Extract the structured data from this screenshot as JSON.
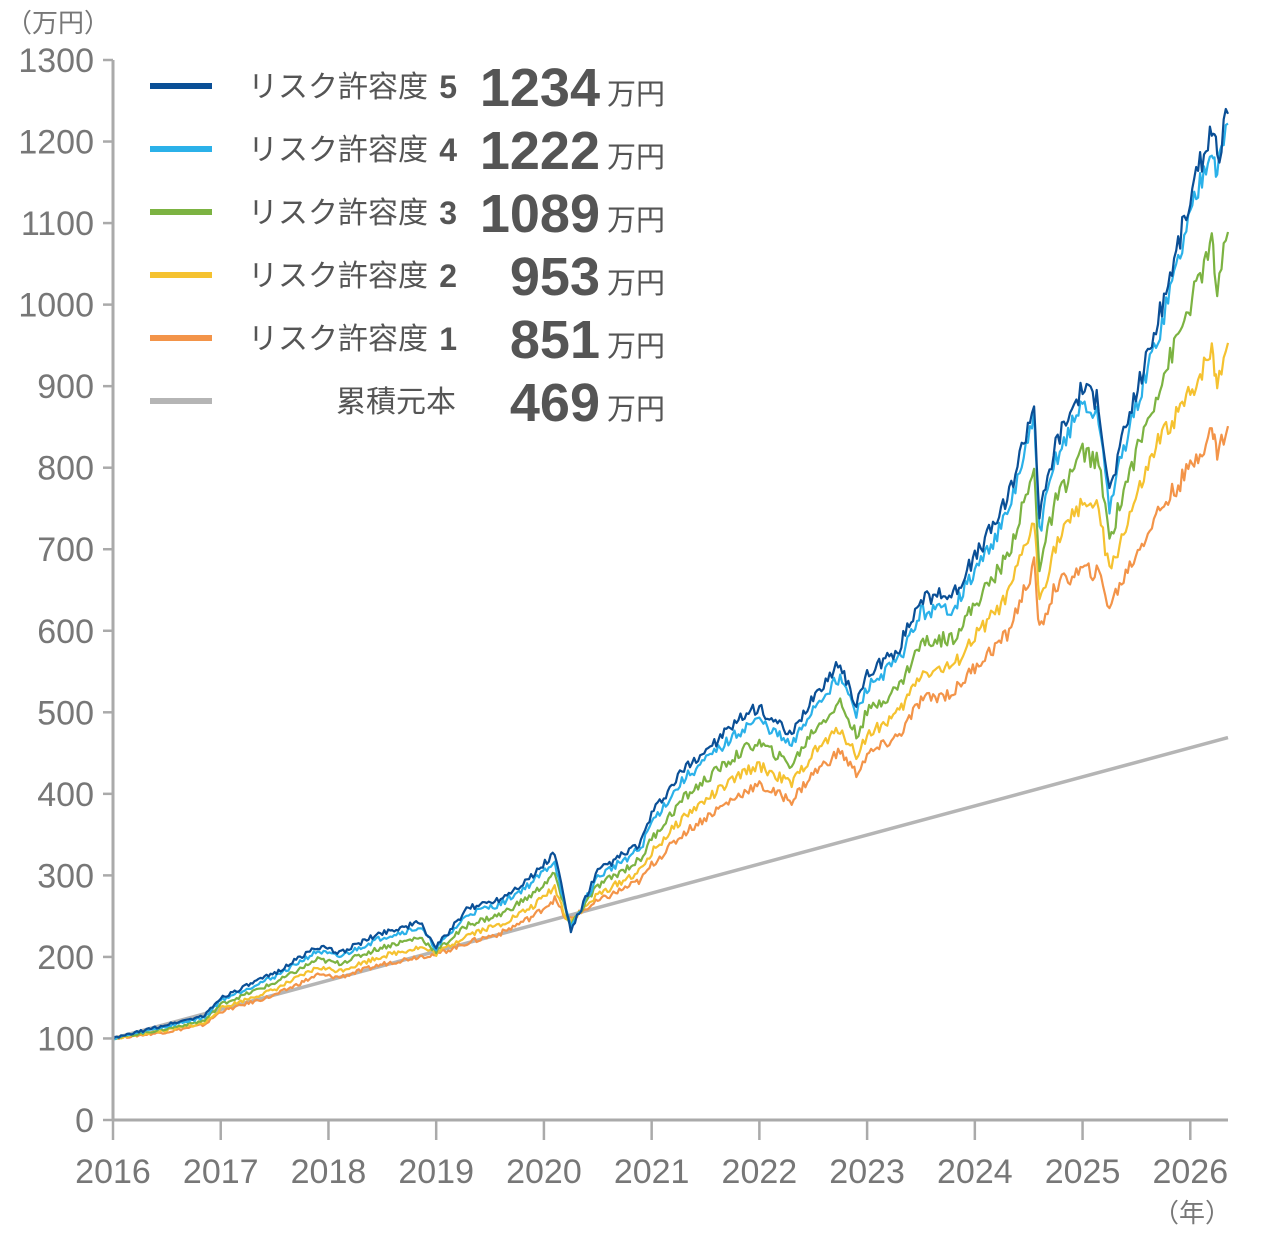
{
  "chart_data": {
    "type": "line",
    "y_unit": "（万円）",
    "x_unit": "（年）",
    "xlim": [
      2016,
      2026.35
    ],
    "ylim": [
      0,
      1300
    ],
    "y_ticks": [
      0,
      100,
      200,
      300,
      400,
      500,
      600,
      700,
      800,
      900,
      1000,
      1100,
      1200,
      1300
    ],
    "x_ticks": [
      2016,
      2017,
      2018,
      2019,
      2020,
      2021,
      2022,
      2023,
      2024,
      2025,
      2026
    ],
    "grid": false,
    "legend_position": "top-left",
    "colors": {
      "axis": "#aaaaaa",
      "tick_text": "#777777",
      "legend_text": "#555555"
    },
    "series": [
      {
        "name": "リスク許容度",
        "level": "5",
        "final_value": "1234",
        "unit": "万円",
        "color": "#0a4f96",
        "points": [
          [
            2016.0,
            100
          ],
          [
            2016.5,
            117
          ],
          [
            2016.85,
            128
          ],
          [
            2017.0,
            150
          ],
          [
            2017.5,
            180
          ],
          [
            2017.9,
            213
          ],
          [
            2018.1,
            205
          ],
          [
            2018.5,
            230
          ],
          [
            2018.85,
            242
          ],
          [
            2019.0,
            212
          ],
          [
            2019.3,
            260
          ],
          [
            2019.6,
            272
          ],
          [
            2019.9,
            300
          ],
          [
            2020.1,
            328
          ],
          [
            2020.2,
            262
          ],
          [
            2020.25,
            232
          ],
          [
            2020.5,
            305
          ],
          [
            2020.9,
            340
          ],
          [
            2021.0,
            375
          ],
          [
            2021.3,
            430
          ],
          [
            2021.6,
            465
          ],
          [
            2021.9,
            500
          ],
          [
            2022.0,
            505
          ],
          [
            2022.3,
            470
          ],
          [
            2022.5,
            520
          ],
          [
            2022.75,
            560
          ],
          [
            2022.9,
            510
          ],
          [
            2023.0,
            545
          ],
          [
            2023.3,
            580
          ],
          [
            2023.5,
            640
          ],
          [
            2023.8,
            645
          ],
          [
            2024.0,
            690
          ],
          [
            2024.3,
            760
          ],
          [
            2024.55,
            880
          ],
          [
            2024.6,
            740
          ],
          [
            2024.75,
            830
          ],
          [
            2025.0,
            900
          ],
          [
            2025.15,
            880
          ],
          [
            2025.25,
            770
          ],
          [
            2025.4,
            850
          ],
          [
            2025.7,
            980
          ],
          [
            2026.0,
            1130
          ],
          [
            2026.2,
            1220
          ],
          [
            2026.25,
            1180
          ],
          [
            2026.35,
            1234
          ]
        ]
      },
      {
        "name": "リスク許容度",
        "level": "4",
        "final_value": "1222",
        "unit": "万円",
        "color": "#2bb1e9",
        "points": [
          [
            2016.0,
            100
          ],
          [
            2016.5,
            115
          ],
          [
            2016.85,
            126
          ],
          [
            2017.0,
            147
          ],
          [
            2017.5,
            176
          ],
          [
            2017.9,
            207
          ],
          [
            2018.1,
            200
          ],
          [
            2018.5,
            224
          ],
          [
            2018.85,
            236
          ],
          [
            2019.0,
            210
          ],
          [
            2019.3,
            253
          ],
          [
            2019.6,
            265
          ],
          [
            2019.9,
            292
          ],
          [
            2020.1,
            318
          ],
          [
            2020.2,
            258
          ],
          [
            2020.25,
            236
          ],
          [
            2020.5,
            298
          ],
          [
            2020.9,
            333
          ],
          [
            2021.0,
            365
          ],
          [
            2021.3,
            418
          ],
          [
            2021.6,
            452
          ],
          [
            2021.9,
            485
          ],
          [
            2022.0,
            490
          ],
          [
            2022.3,
            458
          ],
          [
            2022.5,
            505
          ],
          [
            2022.75,
            545
          ],
          [
            2022.9,
            497
          ],
          [
            2023.0,
            530
          ],
          [
            2023.3,
            565
          ],
          [
            2023.5,
            622
          ],
          [
            2023.8,
            628
          ],
          [
            2024.0,
            672
          ],
          [
            2024.3,
            740
          ],
          [
            2024.55,
            858
          ],
          [
            2024.6,
            722
          ],
          [
            2024.75,
            810
          ],
          [
            2025.0,
            878
          ],
          [
            2025.15,
            860
          ],
          [
            2025.25,
            752
          ],
          [
            2025.4,
            832
          ],
          [
            2025.7,
            960
          ],
          [
            2026.0,
            1110
          ],
          [
            2026.2,
            1200
          ],
          [
            2026.25,
            1160
          ],
          [
            2026.35,
            1222
          ]
        ]
      },
      {
        "name": "リスク許容度",
        "level": "3",
        "final_value": "1089",
        "unit": "万円",
        "color": "#7cb342",
        "points": [
          [
            2016.0,
            100
          ],
          [
            2016.5,
            112
          ],
          [
            2016.85,
            122
          ],
          [
            2017.0,
            142
          ],
          [
            2017.5,
            168
          ],
          [
            2017.9,
            197
          ],
          [
            2018.1,
            192
          ],
          [
            2018.5,
            212
          ],
          [
            2018.85,
            224
          ],
          [
            2019.0,
            207
          ],
          [
            2019.3,
            240
          ],
          [
            2019.6,
            252
          ],
          [
            2019.9,
            277
          ],
          [
            2020.1,
            302
          ],
          [
            2020.2,
            255
          ],
          [
            2020.25,
            240
          ],
          [
            2020.5,
            287
          ],
          [
            2020.9,
            320
          ],
          [
            2021.0,
            345
          ],
          [
            2021.3,
            395
          ],
          [
            2021.6,
            428
          ],
          [
            2021.9,
            458
          ],
          [
            2022.0,
            462
          ],
          [
            2022.3,
            435
          ],
          [
            2022.5,
            478
          ],
          [
            2022.75,
            512
          ],
          [
            2022.9,
            472
          ],
          [
            2023.0,
            500
          ],
          [
            2023.3,
            532
          ],
          [
            2023.5,
            585
          ],
          [
            2023.8,
            592
          ],
          [
            2024.0,
            632
          ],
          [
            2024.3,
            690
          ],
          [
            2024.55,
            795
          ],
          [
            2024.6,
            680
          ],
          [
            2024.75,
            758
          ],
          [
            2025.0,
            820
          ],
          [
            2025.15,
            805
          ],
          [
            2025.25,
            712
          ],
          [
            2025.4,
            780
          ],
          [
            2025.7,
            895
          ],
          [
            2026.0,
            1000
          ],
          [
            2026.2,
            1075
          ],
          [
            2026.25,
            1015
          ],
          [
            2026.35,
            1089
          ]
        ]
      },
      {
        "name": "リスク許容度",
        "level": "2",
        "final_value": "953",
        "unit": "万円",
        "color": "#f5c230",
        "points": [
          [
            2016.0,
            100
          ],
          [
            2016.5,
            110
          ],
          [
            2016.85,
            119
          ],
          [
            2017.0,
            137
          ],
          [
            2017.5,
            160
          ],
          [
            2017.9,
            187
          ],
          [
            2018.1,
            183
          ],
          [
            2018.5,
            201
          ],
          [
            2018.85,
            212
          ],
          [
            2019.0,
            204
          ],
          [
            2019.3,
            228
          ],
          [
            2019.6,
            240
          ],
          [
            2019.9,
            262
          ],
          [
            2020.1,
            286
          ],
          [
            2020.2,
            250
          ],
          [
            2020.25,
            244
          ],
          [
            2020.5,
            276
          ],
          [
            2020.9,
            306
          ],
          [
            2021.0,
            328
          ],
          [
            2021.3,
            372
          ],
          [
            2021.6,
            402
          ],
          [
            2021.9,
            430
          ],
          [
            2022.0,
            434
          ],
          [
            2022.3,
            412
          ],
          [
            2022.5,
            450
          ],
          [
            2022.75,
            480
          ],
          [
            2022.9,
            447
          ],
          [
            2023.0,
            472
          ],
          [
            2023.3,
            500
          ],
          [
            2023.5,
            548
          ],
          [
            2023.8,
            556
          ],
          [
            2024.0,
            592
          ],
          [
            2024.3,
            640
          ],
          [
            2024.55,
            735
          ],
          [
            2024.6,
            638
          ],
          [
            2024.75,
            705
          ],
          [
            2025.0,
            760
          ],
          [
            2025.15,
            748
          ],
          [
            2025.25,
            670
          ],
          [
            2025.4,
            728
          ],
          [
            2025.7,
            830
          ],
          [
            2026.0,
            890
          ],
          [
            2026.2,
            945
          ],
          [
            2026.25,
            905
          ],
          [
            2026.35,
            953
          ]
        ]
      },
      {
        "name": "リスク許容度",
        "level": "1",
        "final_value": "851",
        "unit": "万円",
        "color": "#f39449",
        "points": [
          [
            2016.0,
            100
          ],
          [
            2016.5,
            108
          ],
          [
            2016.85,
            117
          ],
          [
            2017.0,
            133
          ],
          [
            2017.5,
            153
          ],
          [
            2017.9,
            178
          ],
          [
            2018.1,
            175
          ],
          [
            2018.5,
            191
          ],
          [
            2018.85,
            201
          ],
          [
            2019.0,
            203
          ],
          [
            2019.3,
            218
          ],
          [
            2019.6,
            229
          ],
          [
            2019.9,
            250
          ],
          [
            2020.1,
            271
          ],
          [
            2020.2,
            248
          ],
          [
            2020.25,
            247
          ],
          [
            2020.5,
            268
          ],
          [
            2020.9,
            294
          ],
          [
            2021.0,
            313
          ],
          [
            2021.3,
            352
          ],
          [
            2021.6,
            380
          ],
          [
            2021.9,
            406
          ],
          [
            2022.0,
            410
          ],
          [
            2022.3,
            392
          ],
          [
            2022.5,
            425
          ],
          [
            2022.75,
            452
          ],
          [
            2022.9,
            425
          ],
          [
            2023.0,
            447
          ],
          [
            2023.3,
            472
          ],
          [
            2023.5,
            515
          ],
          [
            2023.8,
            524
          ],
          [
            2024.0,
            556
          ],
          [
            2024.3,
            595
          ],
          [
            2024.55,
            680
          ],
          [
            2024.6,
            600
          ],
          [
            2024.75,
            655
          ],
          [
            2025.0,
            675
          ],
          [
            2025.15,
            670
          ],
          [
            2025.25,
            630
          ],
          [
            2025.4,
            670
          ],
          [
            2025.7,
            745
          ],
          [
            2026.0,
            800
          ],
          [
            2026.2,
            845
          ],
          [
            2026.25,
            820
          ],
          [
            2026.35,
            851
          ]
        ]
      },
      {
        "name": "累積元本",
        "level": "",
        "final_value": "469",
        "unit": "万円",
        "color": "#b5b5b5",
        "points": [
          [
            2016.0,
            100
          ],
          [
            2026.35,
            469
          ]
        ]
      }
    ]
  }
}
